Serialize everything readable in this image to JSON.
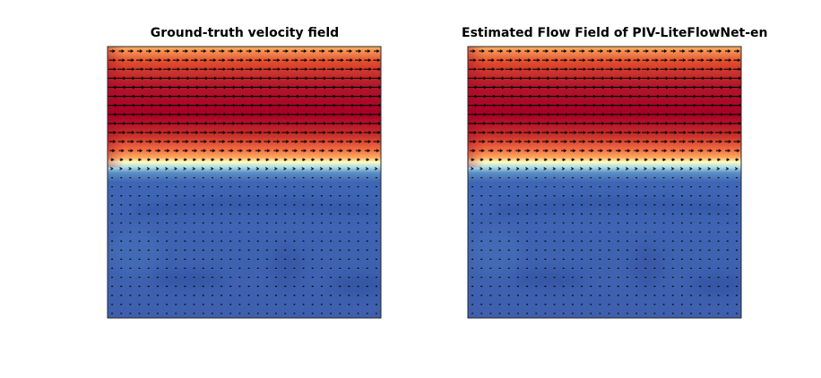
{
  "chart_data": [
    {
      "type": "heatmap",
      "title": "Ground-truth velocity field",
      "xlabel": "",
      "ylabel": "",
      "colormap": "RdYlBu_r",
      "overlay": "quiver",
      "grid": false,
      "rows": 30,
      "cols": 30,
      "velocity_profile": {
        "band_rows_from_top": [
          0,
          1,
          2,
          3,
          4,
          5,
          6,
          7,
          8,
          9,
          10,
          11,
          12,
          13
        ],
        "band_relative_u": [
          0.55,
          0.7,
          0.82,
          0.92,
          0.98,
          1.0,
          1.0,
          0.97,
          0.9,
          0.8,
          0.68,
          0.52,
          0.32,
          0.14
        ],
        "lower_region_relative_u": 0.03
      },
      "colors": {
        "high": "#a50026",
        "mid_high": "#f46d43",
        "mid": "#ffffbf",
        "mid_low": "#abd9e9",
        "low": "#3f5fae"
      }
    },
    {
      "type": "heatmap",
      "title": "Estimated Flow Field of PIV-LiteFlowNet-en",
      "xlabel": "",
      "ylabel": "",
      "colormap": "RdYlBu_r",
      "overlay": "quiver",
      "grid": false,
      "rows": 30,
      "cols": 30,
      "velocity_profile": {
        "band_rows_from_top": [
          0,
          1,
          2,
          3,
          4,
          5,
          6,
          7,
          8,
          9,
          10,
          11,
          12,
          13
        ],
        "band_relative_u": [
          0.55,
          0.7,
          0.82,
          0.92,
          0.98,
          1.0,
          1.0,
          0.97,
          0.9,
          0.8,
          0.68,
          0.52,
          0.32,
          0.14
        ],
        "lower_region_relative_u": 0.03
      },
      "colors": {
        "high": "#a50026",
        "mid_high": "#f46d43",
        "mid": "#ffffbf",
        "mid_low": "#abd9e9",
        "low": "#3f5fae"
      }
    }
  ]
}
